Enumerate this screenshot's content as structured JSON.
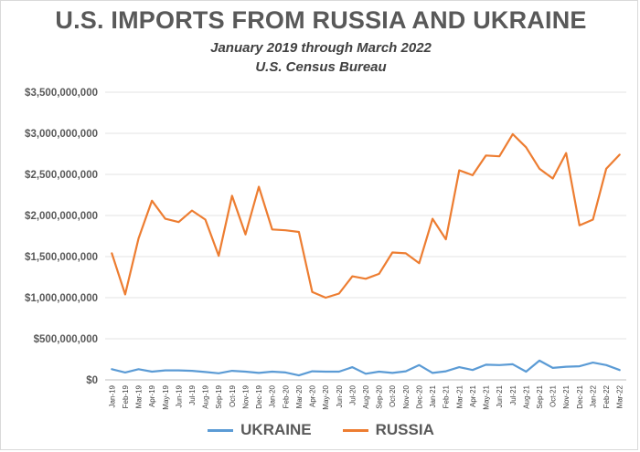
{
  "chart_data": {
    "type": "line",
    "title": "U.S. IMPORTS FROM RUSSIA AND UKRAINE",
    "subtitle": "January 2019 through March 2022",
    "subtitle2": "U.S. Census Bureau",
    "xlabel": "",
    "ylabel": "",
    "ylim": [
      0,
      3500000000
    ],
    "yticks": [
      0,
      500000000,
      1000000000,
      1500000000,
      2000000000,
      2500000000,
      3000000000,
      3500000000
    ],
    "ytick_labels": [
      "$0",
      "$500,000,000",
      "$1,000,000,000",
      "$1,500,000,000",
      "$2,000,000,000",
      "$2,500,000,000",
      "$3,000,000,000",
      "$3,500,000,000"
    ],
    "grid": true,
    "legend_position": "bottom",
    "categories": [
      "Jan-19",
      "Feb-19",
      "Mar-19",
      "Apr-19",
      "May-19",
      "Jun-19",
      "Jul-19",
      "Aug-19",
      "Sep-19",
      "Oct-19",
      "Nov-19",
      "Dec-19",
      "Jan-20",
      "Feb-20",
      "Mar-20",
      "Apr-20",
      "May-20",
      "Jun-20",
      "Jul-20",
      "Aug-20",
      "Sep-20",
      "Oct-20",
      "Nov-20",
      "Dec-20",
      "Jan-21",
      "Feb-21",
      "Mar-21",
      "Apr-21",
      "May-21",
      "Jun-21",
      "Jul-21",
      "Aug-21",
      "Sep-21",
      "Oct-21",
      "Nov-21",
      "Dec-21",
      "Jan-22",
      "Feb-22",
      "Mar-22"
    ],
    "series": [
      {
        "name": "UKRAINE",
        "color": "#5b9bd5",
        "values": [
          130000000,
          90000000,
          130000000,
          100000000,
          115000000,
          115000000,
          110000000,
          95000000,
          80000000,
          110000000,
          100000000,
          85000000,
          100000000,
          90000000,
          55000000,
          105000000,
          100000000,
          100000000,
          155000000,
          75000000,
          100000000,
          85000000,
          105000000,
          180000000,
          85000000,
          105000000,
          155000000,
          120000000,
          185000000,
          180000000,
          190000000,
          100000000,
          235000000,
          145000000,
          160000000,
          165000000,
          210000000,
          180000000,
          120000000
        ]
      },
      {
        "name": "RUSSIA",
        "color": "#ed7d31",
        "values": [
          1540000000,
          1040000000,
          1720000000,
          2180000000,
          1960000000,
          1920000000,
          2060000000,
          1950000000,
          1510000000,
          2240000000,
          1770000000,
          2350000000,
          1830000000,
          1820000000,
          1800000000,
          1070000000,
          1000000000,
          1050000000,
          1260000000,
          1230000000,
          1290000000,
          1550000000,
          1540000000,
          1420000000,
          1960000000,
          1710000000,
          2550000000,
          2490000000,
          2730000000,
          2720000000,
          2990000000,
          2830000000,
          2570000000,
          2450000000,
          2760000000,
          1880000000,
          1950000000,
          2570000000,
          2740000000
        ]
      }
    ]
  }
}
